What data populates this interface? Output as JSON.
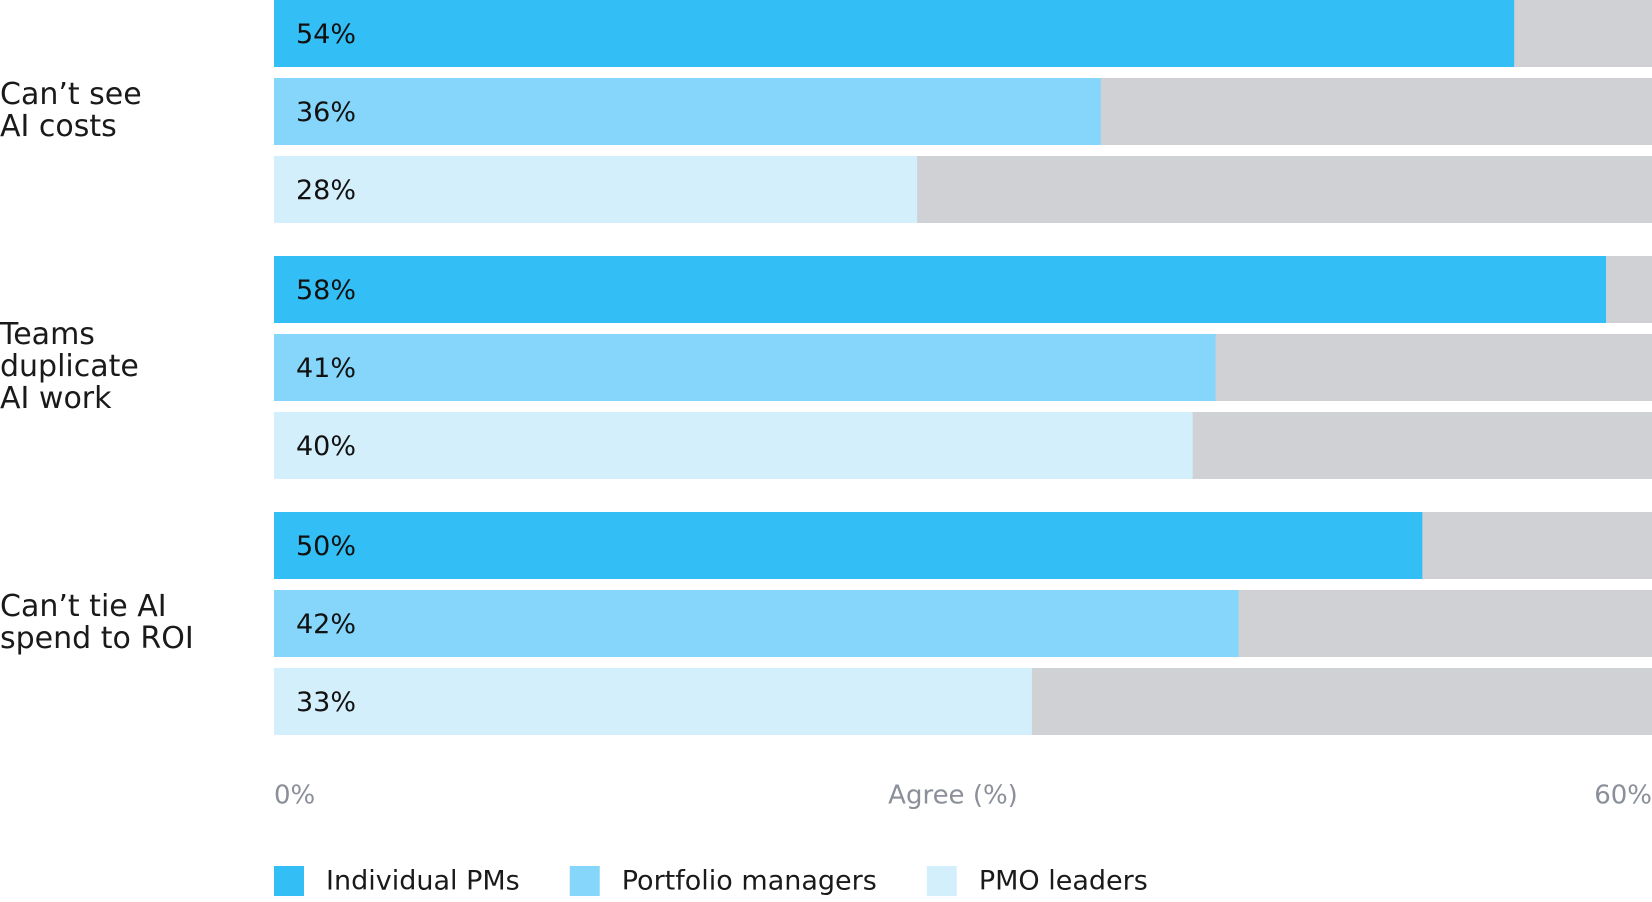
{
  "chart_data": {
    "type": "bar",
    "orientation": "horizontal",
    "categories": [
      [
        "Can’t see",
        "AI costs"
      ],
      [
        "Teams",
        "duplicate",
        "AI work"
      ],
      [
        "Can’t tie AI",
        "spend to ROI"
      ]
    ],
    "series": [
      {
        "name": "Individual PMs",
        "color": "#33bff5",
        "values": [
          54,
          58,
          50
        ],
        "value_labels": [
          "54%",
          "58%",
          "50%"
        ]
      },
      {
        "name": "Portfolio managers",
        "color": "#85d6fa",
        "values": [
          36,
          41,
          42
        ],
        "value_labels": [
          "36%",
          "41%",
          "42%"
        ]
      },
      {
        "name": "PMO leaders",
        "color": "#d4effc",
        "values": [
          28,
          40,
          33
        ],
        "value_labels": [
          "28%",
          "40%",
          "33%"
        ]
      }
    ],
    "track_color": "#d0d1d5",
    "x_label": "Agree (%)",
    "xlim": [
      0,
      60
    ],
    "xticks": [
      {
        "value": 0,
        "label": "0%"
      },
      {
        "value": 60,
        "label": "60%"
      }
    ]
  }
}
